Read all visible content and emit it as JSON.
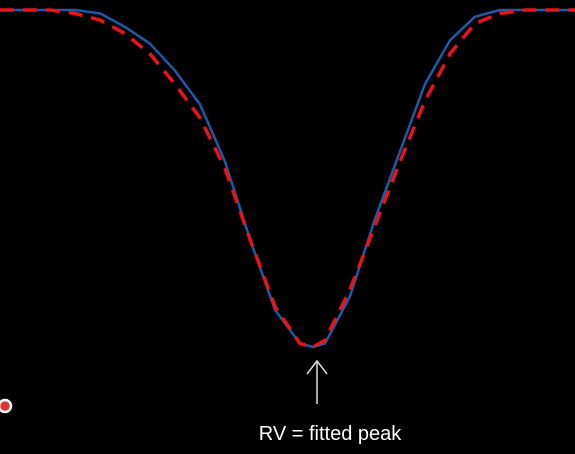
{
  "chart_data": {
    "type": "line",
    "annotation": "RV = fitted peak",
    "x": [
      0,
      50,
      75,
      100,
      125,
      150,
      175,
      200,
      225,
      250,
      275,
      300,
      313,
      325,
      350,
      375,
      400,
      425,
      450,
      475,
      500,
      525,
      575
    ],
    "xlim": [
      0,
      575
    ],
    "ylim": [
      0,
      1
    ],
    "series": [
      {
        "color": "#1f5aa8",
        "dashed": false,
        "values": [
          1,
          1,
          1,
          0.99,
          0.95,
          0.9,
          0.82,
          0.72,
          0.55,
          0.32,
          0.11,
          0.01,
          0,
          0.01,
          0.15,
          0.38,
          0.58,
          0.78,
          0.91,
          0.98,
          1,
          1,
          1
        ]
      },
      {
        "color": "#e8141c",
        "dashed": true,
        "values": [
          1,
          1,
          0.99,
          0.97,
          0.93,
          0.87,
          0.78,
          0.68,
          0.53,
          0.32,
          0.12,
          0.01,
          0,
          0.02,
          0.17,
          0.36,
          0.55,
          0.73,
          0.87,
          0.96,
          0.99,
          1,
          1
        ]
      }
    ]
  }
}
